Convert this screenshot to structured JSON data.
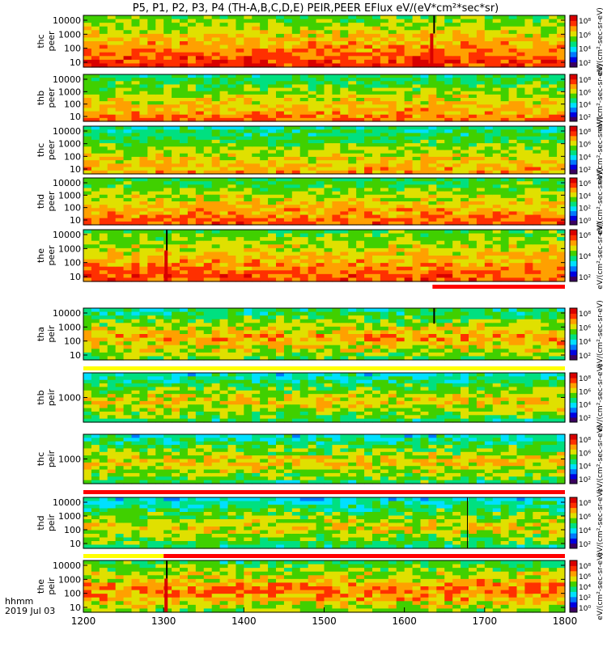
{
  "title": "P5, P1, P2, P3, P4 (TH-A,B,C,D,E) PEIR,PEER EFlux eV/(eV*cm²*sec*sr)",
  "colors": {
    "colormap": [
      "#3a0060",
      "#0000e0",
      "#0078ff",
      "#00e0ff",
      "#00e080",
      "#40d000",
      "#e0e000",
      "#ffa000",
      "#ff3000",
      "#d80000"
    ],
    "flag_red": "#ff0000",
    "flag_yellow": "#ffff00",
    "flag_white": "#ffffff"
  },
  "chart_data": {
    "type": "heatmap",
    "x_axis": {
      "ticks": [
        "1200",
        "1300",
        "1400",
        "1500",
        "1600",
        "1700",
        "1800"
      ],
      "range": [
        1200,
        1800
      ],
      "label_line1": "hhmm",
      "label_line2": "2019 Jul 03"
    },
    "panels": [
      {
        "probe": "thc",
        "species": "peer",
        "ylabel1": "thc",
        "ylabel2": "peer",
        "yticks": [
          "10000",
          "1000",
          "100",
          "10"
        ],
        "cticks": [
          "10⁸",
          "10⁶",
          "10⁴",
          "10²"
        ],
        "clabel": "eV/(cm²-sec-sr-eV)",
        "flag": "none",
        "base": 0.9,
        "events": [
          {
            "x": 1636,
            "w": 2,
            "v": -1,
            "from": 0,
            "to": 0.35
          },
          {
            "x": 1632,
            "w": 4,
            "v": 0.95,
            "from": 0.35,
            "to": 1
          }
        ]
      },
      {
        "probe": "thb",
        "species": "peer",
        "ylabel1": "thb",
        "ylabel2": "peer",
        "yticks": [
          "10000",
          "1000",
          "100",
          "10"
        ],
        "cticks": [
          "10⁸",
          "10⁶",
          "10⁴",
          "10²"
        ],
        "clabel": "eV/(cm²-sec-sr-eV)",
        "flag": "none",
        "base": 0.82,
        "events": []
      },
      {
        "probe": "thc",
        "species": "peer",
        "ylabel1": "thc",
        "ylabel2": "peer",
        "yticks": [
          "10000",
          "1000",
          "100",
          "10"
        ],
        "cticks": [
          "10⁸",
          "10⁶",
          "10⁴",
          "10²"
        ],
        "clabel": "eV/(cm²-sec-sr-eV)",
        "flag": "none",
        "base": 0.78,
        "events": []
      },
      {
        "probe": "thd",
        "species": "peer",
        "ylabel1": "thd",
        "ylabel2": "peer",
        "yticks": [
          "10000",
          "1000",
          "100",
          "10"
        ],
        "cticks": [
          "10⁶",
          "10⁴",
          "10²",
          "10⁰"
        ],
        "clabel": "eV/(cm²-sec-sr-eV)",
        "flag": "none",
        "base": 0.85,
        "events": []
      },
      {
        "probe": "the",
        "species": "peer",
        "ylabel1": "the",
        "ylabel2": "peer",
        "yticks": [
          "10000",
          "1000",
          "100",
          "10"
        ],
        "cticks": [
          "10⁶",
          "10⁴",
          "10²"
        ],
        "clabel": "eV/(cm²-sec-sr-eV)",
        "flag": "red-after-1635",
        "base": 0.88,
        "events": [
          {
            "x": 1303,
            "w": 2,
            "v": -1,
            "from": 0,
            "to": 0.4
          },
          {
            "x": 1301,
            "w": 4,
            "v": 0.95,
            "from": 0.4,
            "to": 1
          }
        ]
      },
      {
        "probe": "tha",
        "species": "peir",
        "ylabel1": "tha",
        "ylabel2": "peir",
        "yticks": [
          "10000",
          "1000",
          "100",
          "10"
        ],
        "cticks": [
          "10⁸",
          "10⁶",
          "10⁴",
          "10²"
        ],
        "clabel": "eV/(cm²-sec-sr-eV)",
        "flag": "yellow",
        "base": 0.75,
        "events": [
          {
            "x": 1636,
            "w": 2,
            "v": -1,
            "from": 0,
            "to": 0.3
          }
        ]
      },
      {
        "probe": "thb",
        "species": "peir",
        "ylabel1": "thb",
        "ylabel2": "peir",
        "yticks": [
          "1000"
        ],
        "cticks": [
          "10⁸",
          "10⁶",
          "10⁴",
          "10²"
        ],
        "clabel": "eV/(cm²-sec-sr-eV)",
        "flag": "none",
        "base": 0.7,
        "events": []
      },
      {
        "probe": "thc",
        "species": "peir",
        "ylabel1": "thc",
        "ylabel2": "peir",
        "yticks": [
          "1000"
        ],
        "cticks": [
          "10⁸",
          "10⁶",
          "10⁴",
          "10²"
        ],
        "clabel": "eV/(cm²-sec-sr-eV)",
        "flag": "red",
        "base": 0.7,
        "events": []
      },
      {
        "probe": "thd",
        "species": "peir",
        "ylabel1": "thd",
        "ylabel2": "peir",
        "yticks": [
          "10000",
          "1000",
          "100",
          "10"
        ],
        "cticks": [
          "10⁸",
          "10⁶",
          "10⁴",
          "10²"
        ],
        "clabel": "eV/(cm²-sec-sr-eV)",
        "flag": "none",
        "base": 0.68,
        "events": [
          {
            "x": 1678,
            "w": 1,
            "v": -1,
            "from": 0,
            "to": 1
          }
        ]
      },
      {
        "probe": "the",
        "species": "peir",
        "ylabel1": "the",
        "ylabel2": "peir",
        "yticks": [
          "10000",
          "1000",
          "100",
          "10"
        ],
        "cticks": [
          "10⁸",
          "10⁶",
          "10⁴",
          "10²",
          "10⁰"
        ],
        "clabel": "eV/(cm²-sec-sr-eV)",
        "flag": "yellow-then-red-1300",
        "base": 0.8,
        "events": [
          {
            "x": 1303,
            "w": 2,
            "v": -1,
            "from": 0,
            "to": 0.35
          },
          {
            "x": 1301,
            "w": 4,
            "v": 0.95,
            "from": 0.35,
            "to": 1
          }
        ]
      }
    ]
  }
}
